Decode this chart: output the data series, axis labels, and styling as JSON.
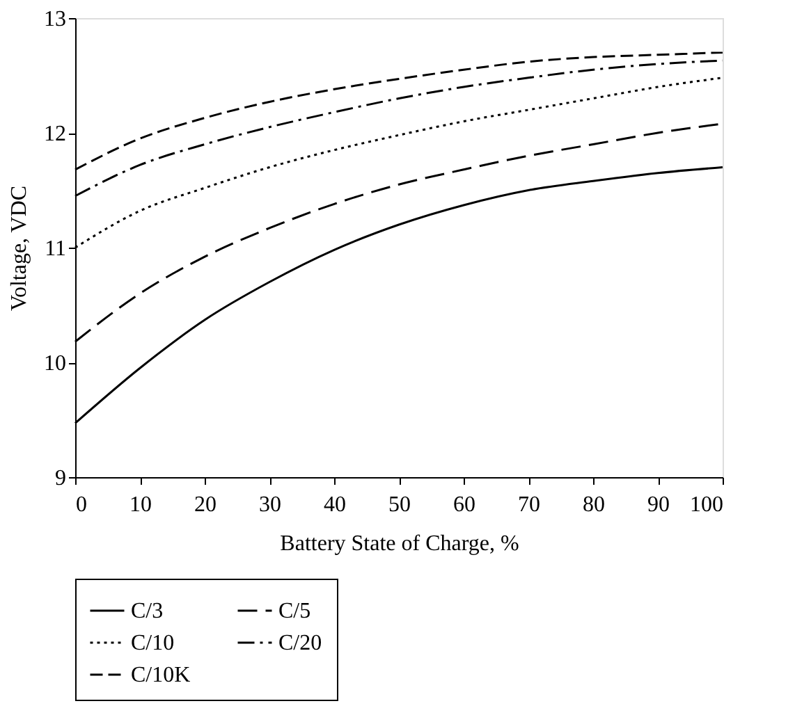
{
  "chart_data": {
    "type": "line",
    "xlabel": "Battery State of Charge, %",
    "ylabel": "Voltage, VDC",
    "x": [
      0,
      10,
      20,
      30,
      40,
      50,
      60,
      70,
      80,
      90,
      100
    ],
    "xlim": [
      0,
      100
    ],
    "xticks": [
      0,
      10,
      20,
      30,
      40,
      50,
      60,
      70,
      80,
      90,
      100
    ],
    "ylim": [
      9,
      13
    ],
    "yticks": [
      9,
      10,
      11,
      12,
      13
    ],
    "grid": false,
    "legend": "bottom",
    "marker": "none",
    "series": [
      {
        "name": "C/3",
        "color": "#000000",
        "line_style": "solid",
        "values": [
          9.47,
          9.95,
          10.37,
          10.7,
          10.98,
          11.2,
          11.37,
          11.5,
          11.58,
          11.65,
          11.7
        ]
      },
      {
        "name": "C/5",
        "color": "#000000",
        "line_style": "longdash",
        "values": [
          10.18,
          10.6,
          10.92,
          11.17,
          11.38,
          11.55,
          11.68,
          11.8,
          11.9,
          12.0,
          12.08
        ]
      },
      {
        "name": "C/10",
        "color": "#000000",
        "line_style": "dotted",
        "values": [
          11.0,
          11.32,
          11.52,
          11.7,
          11.85,
          11.98,
          12.1,
          12.2,
          12.3,
          12.4,
          12.48
        ]
      },
      {
        "name": "C/20",
        "color": "#000000",
        "line_style": "dashdot",
        "values": [
          11.45,
          11.72,
          11.9,
          12.05,
          12.18,
          12.3,
          12.4,
          12.48,
          12.55,
          12.6,
          12.63
        ]
      },
      {
        "name": "C/10K",
        "color": "#000000",
        "line_style": "dashed",
        "values": [
          11.68,
          11.95,
          12.13,
          12.27,
          12.38,
          12.47,
          12.55,
          12.62,
          12.66,
          12.68,
          12.7
        ]
      }
    ]
  }
}
